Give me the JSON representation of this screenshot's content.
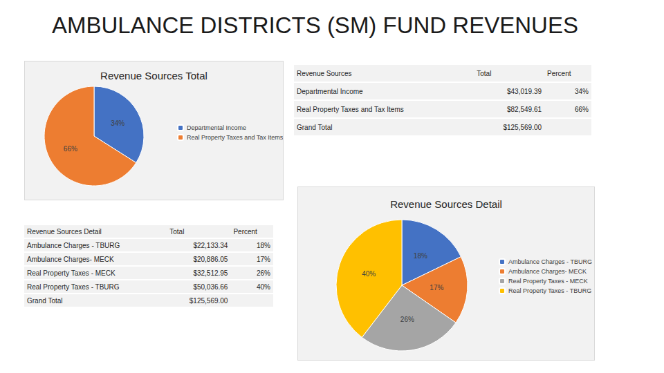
{
  "title": "AMBULANCE DISTRICTS (SM) FUND REVENUES",
  "chart_data": [
    {
      "type": "pie",
      "title": "Revenue Sources Total",
      "categories": [
        "Departmental Income",
        "Real Property Taxes and Tax Items"
      ],
      "values": [
        34,
        66
      ],
      "value_labels": [
        "34%",
        "66%"
      ],
      "colors": [
        "#4472c4",
        "#ed7d31"
      ],
      "data_labels": true,
      "legend": "right"
    },
    {
      "type": "pie",
      "title": "Revenue Sources Detail",
      "categories": [
        "Ambulance Charges - TBURG",
        "Ambulance Charges- MECK",
        "Real Property Taxes - MECK",
        "Real Property Taxes - TBURG"
      ],
      "values": [
        18,
        17,
        26,
        40
      ],
      "value_labels": [
        "18%",
        "17%",
        "26%",
        "40%"
      ],
      "colors": [
        "#4472c4",
        "#ed7d31",
        "#a5a5a5",
        "#ffc000"
      ],
      "data_labels": true,
      "legend": "right"
    }
  ],
  "tables": [
    {
      "header": [
        "Revenue Sources",
        "Total",
        "Percent"
      ],
      "rows": [
        [
          "Departmental Income",
          "$43,019.39",
          "34%"
        ],
        [
          "Real Property Taxes and Tax Items",
          "$82,549.61",
          "66%"
        ],
        [
          "Grand Total",
          "$125,569.00"
        ]
      ]
    },
    {
      "header": [
        "Revenue Sources Detail",
        "Total",
        "Percent"
      ],
      "rows": [
        [
          "Ambulance Charges - TBURG",
          "$22,133.34",
          "18%"
        ],
        [
          "Ambulance Charges- MECK",
          "$20,886.05",
          "17%"
        ],
        [
          "Real Property Taxes - MECK",
          "$32,512.95",
          "26%"
        ],
        [
          "Real Property Taxes - TBURG",
          "$50,036.66",
          "40%"
        ],
        [
          "Grand Total",
          "$125,569.00"
        ]
      ]
    }
  ]
}
